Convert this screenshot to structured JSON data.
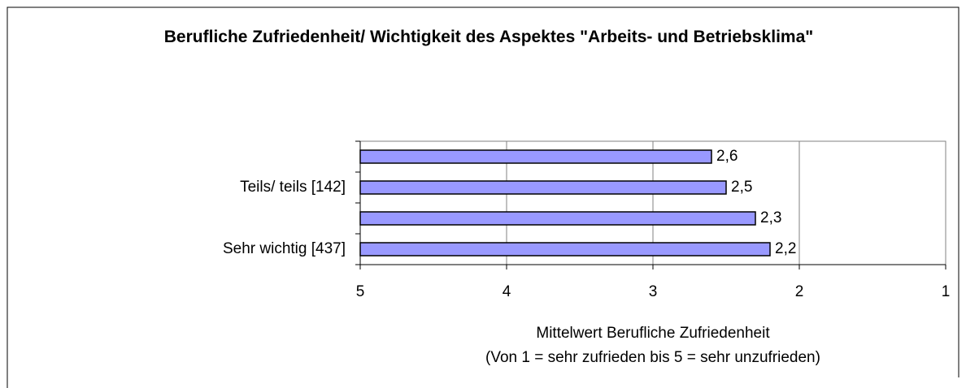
{
  "chart_data": {
    "type": "hbar",
    "title": "Berufliche Zufriedenheit/ Wichtigkeit des Aspektes \"Arbeits- und Betriebsklima\"",
    "categories": [
      null,
      "Teils/ teils [142]",
      null,
      "Sehr wichtig [437]"
    ],
    "values": [
      2.6,
      2.5,
      2.3,
      2.2
    ],
    "value_labels": [
      "2,6",
      "2,5",
      "2,3",
      "2,2"
    ],
    "color": "#9999ff",
    "x_label": [
      "Mittelwert Berufliche Zufriedenheit",
      "(Von 1 = sehr zufrieden bis 5 = sehr unzufrieden)"
    ],
    "xlim": [
      5,
      1
    ],
    "xticks": [
      5,
      4,
      3,
      2,
      1
    ],
    "grid": true
  }
}
